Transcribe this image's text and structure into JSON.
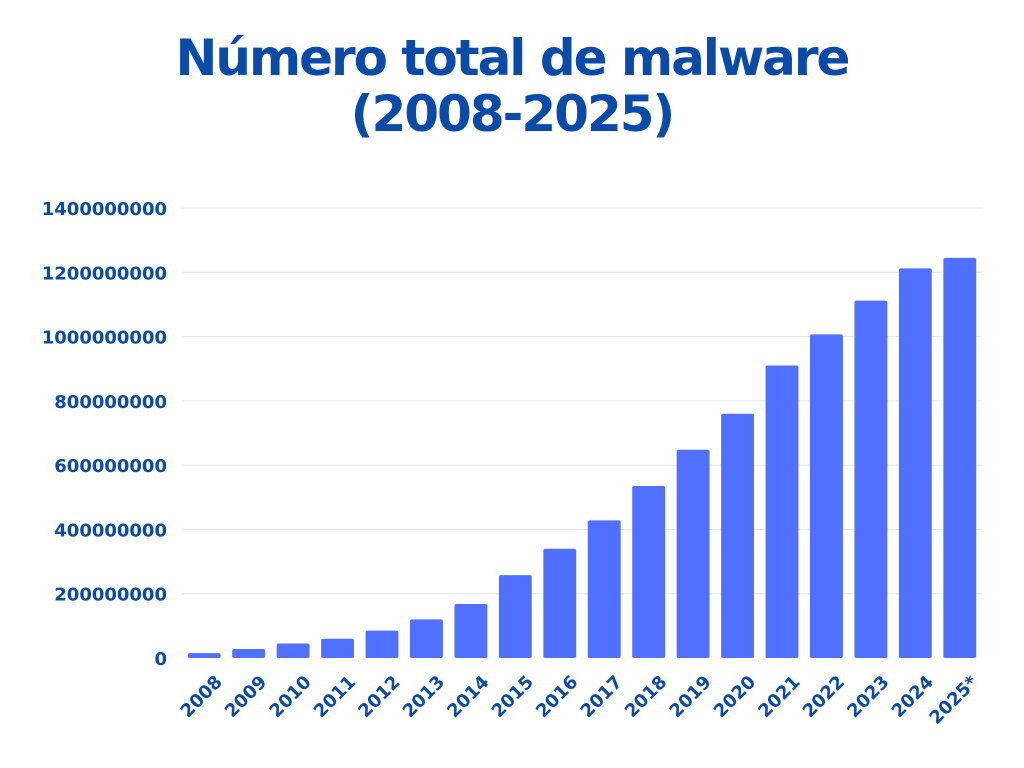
{
  "chart_data": {
    "type": "bar",
    "title_lines": [
      "Número total de malware",
      "(2008-2025)"
    ],
    "categories": [
      "2008",
      "2009",
      "2010",
      "2011",
      "2012",
      "2013",
      "2014",
      "2015",
      "2016",
      "2017",
      "2018",
      "2019",
      "2020",
      "2021",
      "2022",
      "2023",
      "2024",
      "2025*"
    ],
    "values": [
      15000000,
      28000000,
      45000000,
      60000000,
      85000000,
      120000000,
      168000000,
      258000000,
      340000000,
      428000000,
      535000000,
      648000000,
      760000000,
      910000000,
      1007000000,
      1112000000,
      1212000000,
      1245000000
    ],
    "yticks": [
      0,
      200000000,
      400000000,
      600000000,
      800000000,
      1000000000,
      1200000000,
      1400000000
    ],
    "ylim": [
      0,
      1400000000
    ],
    "xlabel": "",
    "ylabel": "",
    "grid": true,
    "bar_color": "#5170ff",
    "text_color": "#0a4aa8"
  }
}
